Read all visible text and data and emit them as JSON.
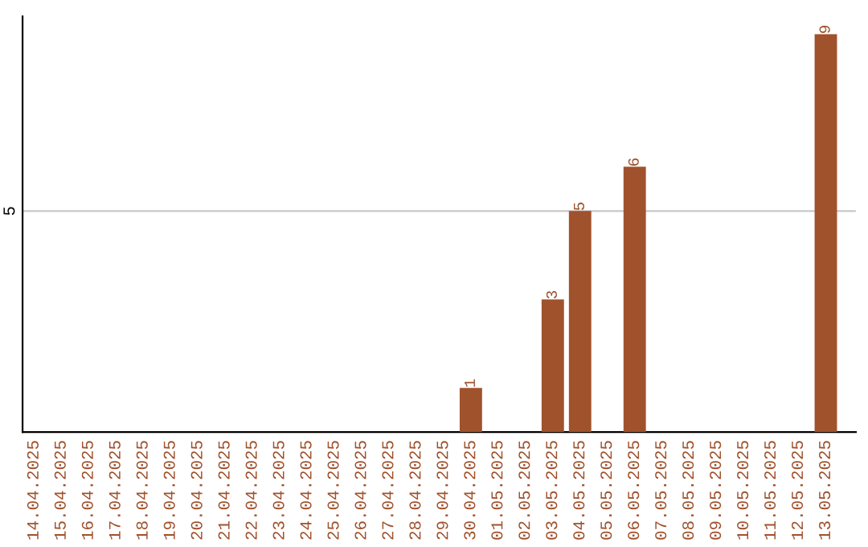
{
  "chart_data": {
    "type": "bar",
    "categories": [
      "14.04.2025",
      "15.04.2025",
      "16.04.2025",
      "17.04.2025",
      "18.04.2025",
      "19.04.2025",
      "20.04.2025",
      "21.04.2025",
      "22.04.2025",
      "23.04.2025",
      "24.04.2025",
      "25.04.2025",
      "26.04.2025",
      "27.04.2025",
      "28.04.2025",
      "29.04.2025",
      "30.04.2025",
      "01.05.2025",
      "02.05.2025",
      "03.05.2025",
      "04.05.2025",
      "05.05.2025",
      "06.05.2025",
      "07.05.2025",
      "08.05.2025",
      "09.05.2025",
      "10.05.2025",
      "11.05.2025",
      "12.05.2025",
      "13.05.2025"
    ],
    "values": [
      null,
      null,
      null,
      null,
      null,
      null,
      null,
      null,
      null,
      null,
      null,
      null,
      null,
      null,
      null,
      null,
      1,
      null,
      null,
      3,
      5,
      null,
      6,
      null,
      null,
      null,
      null,
      null,
      null,
      9
    ],
    "value_labels": [
      null,
      null,
      null,
      null,
      null,
      null,
      null,
      null,
      null,
      null,
      null,
      null,
      null,
      null,
      null,
      null,
      "1",
      null,
      null,
      "3",
      "5",
      null,
      "6",
      null,
      null,
      null,
      null,
      null,
      null,
      "9"
    ],
    "color": "#a0522d",
    "ylim": [
      0,
      9.4
    ],
    "yticks": [
      5
    ],
    "grid": "y"
  }
}
